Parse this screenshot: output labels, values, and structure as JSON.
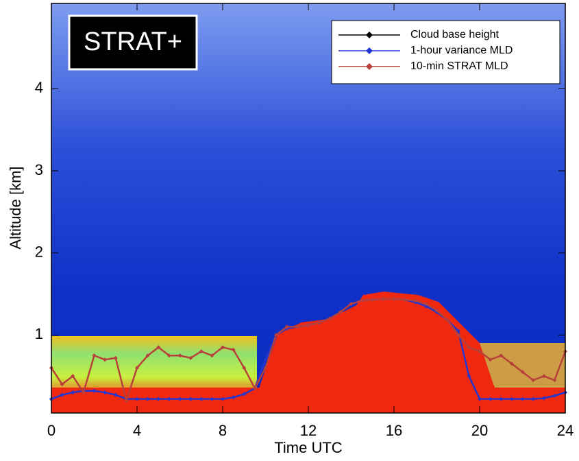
{
  "chart_data": {
    "type": "line",
    "annotation": "STRAT+",
    "xlabel": "Time UTC",
    "ylabel": "Altitude [km]",
    "x": [
      0,
      0.5,
      1,
      1.5,
      2,
      2.5,
      3,
      3.5,
      4,
      4.5,
      5,
      5.5,
      6,
      6.5,
      7,
      7.5,
      8,
      8.5,
      9,
      9.5,
      10,
      10.5,
      11,
      11.5,
      12,
      12.5,
      13,
      13.5,
      14,
      14.5,
      15,
      15.5,
      16,
      16.5,
      17,
      17.5,
      18,
      18.5,
      19,
      19.5,
      20,
      20.5,
      21,
      21.5,
      22,
      22.5,
      23,
      23.5,
      24
    ],
    "series": [
      {
        "name": "Cloud base height",
        "color": "#000000",
        "values": [
          null,
          null,
          null,
          null,
          null,
          null,
          null,
          null,
          null,
          null,
          null,
          null,
          null,
          null,
          null,
          null,
          null,
          null,
          null,
          null,
          null,
          null,
          null,
          null,
          null,
          null,
          null,
          null,
          null,
          null,
          null,
          null,
          null,
          null,
          null,
          null,
          null,
          null,
          null,
          null,
          null,
          null,
          null,
          null,
          null,
          null,
          null,
          null,
          null
        ]
      },
      {
        "name": "1-hour variance MLD",
        "color": "#2236d0",
        "values": [
          0.22,
          0.27,
          0.3,
          0.32,
          0.32,
          0.3,
          0.27,
          0.22,
          0.22,
          0.22,
          0.22,
          0.22,
          0.22,
          0.22,
          0.22,
          0.22,
          0.22,
          0.24,
          0.28,
          0.35,
          0.7,
          1.0,
          1.08,
          1.1,
          1.12,
          1.15,
          1.2,
          1.28,
          1.38,
          1.42,
          1.43,
          1.44,
          1.44,
          1.43,
          1.4,
          1.35,
          1.28,
          1.18,
          1.05,
          0.5,
          0.22,
          0.22,
          0.22,
          0.22,
          0.22,
          0.22,
          0.23,
          0.26,
          0.3
        ]
      },
      {
        "name": "10-min STRAT MLD",
        "color": "#b8403a",
        "values": [
          0.6,
          0.4,
          0.5,
          0.3,
          0.75,
          0.7,
          0.72,
          0.2,
          0.6,
          0.75,
          0.85,
          0.75,
          0.75,
          0.72,
          0.8,
          0.75,
          0.85,
          0.82,
          0.6,
          0.35,
          0.6,
          1.0,
          1.1,
          1.1,
          1.12,
          1.15,
          1.2,
          1.28,
          1.38,
          1.42,
          1.43,
          1.44,
          1.44,
          1.43,
          1.42,
          1.38,
          1.3,
          1.18,
          1.0,
          0.85,
          0.8,
          0.7,
          0.75,
          0.65,
          0.55,
          0.45,
          0.5,
          0.45,
          0.8
        ]
      }
    ],
    "xlim": [
      0,
      24
    ],
    "xticks": [
      0,
      4,
      8,
      12,
      16,
      20,
      24
    ],
    "ylim": [
      0.05,
      5.04
    ],
    "yticks": [
      1,
      2,
      3,
      4
    ],
    "legend": "upper right"
  }
}
